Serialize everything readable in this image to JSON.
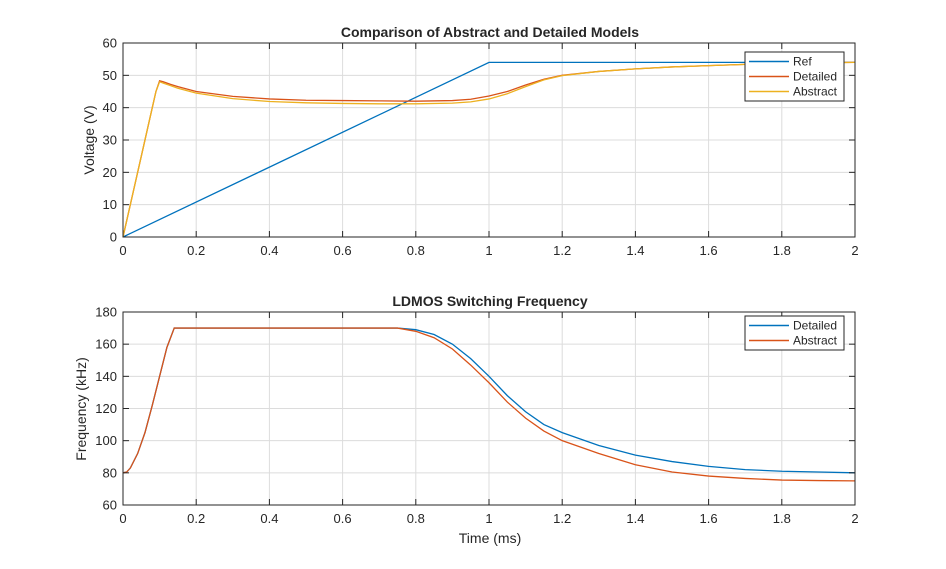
{
  "chart_data": [
    {
      "type": "line",
      "title": "Comparison of Abstract and Detailed Models",
      "xlabel": "",
      "ylabel": "Voltage (V)",
      "xlim": [
        0,
        2
      ],
      "ylim": [
        0,
        60
      ],
      "xticks": [
        0,
        0.2,
        0.4,
        0.6,
        0.8,
        1,
        1.2,
        1.4,
        1.6,
        1.8,
        2
      ],
      "xtick_labels": [
        "0",
        "0.2",
        "0.4",
        "0.6",
        "0.8",
        "1",
        "1.2",
        "1.4",
        "1.6",
        "1.8",
        "2"
      ],
      "yticks": [
        0,
        10,
        20,
        30,
        40,
        50,
        60
      ],
      "ytick_labels": [
        "0",
        "10",
        "20",
        "30",
        "40",
        "50",
        "60"
      ],
      "grid": true,
      "legend_position": "top-right",
      "series": [
        {
          "name": "Ref",
          "color": "#0072BD",
          "x": [
            0,
            1,
            2
          ],
          "y": [
            0,
            54,
            54
          ]
        },
        {
          "name": "Detailed",
          "color": "#D95319",
          "x": [
            0,
            0.01,
            0.03,
            0.05,
            0.07,
            0.09,
            0.1,
            0.11,
            0.13,
            0.15,
            0.2,
            0.3,
            0.4,
            0.5,
            0.6,
            0.7,
            0.8,
            0.9,
            0.95,
            1.0,
            1.05,
            1.1,
            1.15,
            1.2,
            1.3,
            1.4,
            1.5,
            1.6,
            1.7,
            1.8,
            1.9,
            2.0
          ],
          "y": [
            0,
            5,
            15,
            25,
            35,
            45,
            48.3,
            48,
            47.2,
            46.5,
            45,
            43.5,
            42.7,
            42.3,
            42.2,
            42.1,
            42,
            42.2,
            42.6,
            43.6,
            45,
            47,
            48.8,
            50,
            51.2,
            52,
            52.6,
            53,
            53.4,
            53.7,
            53.9,
            54
          ]
        },
        {
          "name": "Abstract",
          "color": "#EDB120",
          "x": [
            0,
            0.01,
            0.03,
            0.05,
            0.07,
            0.09,
            0.1,
            0.11,
            0.13,
            0.15,
            0.2,
            0.3,
            0.4,
            0.5,
            0.6,
            0.7,
            0.8,
            0.9,
            0.95,
            1.0,
            1.05,
            1.1,
            1.15,
            1.2,
            1.3,
            1.4,
            1.5,
            1.6,
            1.7,
            1.8,
            1.9,
            2.0
          ],
          "y": [
            0,
            5,
            15,
            25,
            35,
            45,
            48,
            47.6,
            46.8,
            46,
            44.5,
            42.8,
            41.9,
            41.5,
            41.3,
            41.2,
            41.2,
            41.4,
            41.8,
            42.7,
            44.3,
            46.5,
            48.6,
            49.9,
            51.2,
            52,
            52.6,
            53,
            53.4,
            53.7,
            53.9,
            54
          ]
        }
      ]
    },
    {
      "type": "line",
      "title": "LDMOS Switching Frequency",
      "xlabel": "Time (ms)",
      "ylabel": "Frequency (kHz)",
      "xlim": [
        0,
        2
      ],
      "ylim": [
        60,
        180
      ],
      "xticks": [
        0,
        0.2,
        0.4,
        0.6,
        0.8,
        1,
        1.2,
        1.4,
        1.6,
        1.8,
        2
      ],
      "xtick_labels": [
        "0",
        "0.2",
        "0.4",
        "0.6",
        "0.8",
        "1",
        "1.2",
        "1.4",
        "1.6",
        "1.8",
        "2"
      ],
      "yticks": [
        60,
        80,
        100,
        120,
        140,
        160,
        180
      ],
      "ytick_labels": [
        "60",
        "80",
        "100",
        "120",
        "140",
        "160",
        "180"
      ],
      "grid": true,
      "legend_position": "top-right",
      "series": [
        {
          "name": "Detailed",
          "color": "#0072BD",
          "x": [
            0,
            0.01,
            0.02,
            0.04,
            0.06,
            0.08,
            0.1,
            0.12,
            0.14,
            0.2,
            0.4,
            0.6,
            0.75,
            0.8,
            0.85,
            0.9,
            0.95,
            1.0,
            1.05,
            1.1,
            1.15,
            1.2,
            1.3,
            1.4,
            1.5,
            1.6,
            1.7,
            1.8,
            1.9,
            2.0
          ],
          "y": [
            80,
            80.5,
            83,
            92,
            105,
            122,
            140,
            158,
            170,
            170,
            170,
            170,
            170,
            169,
            166,
            160,
            151,
            140,
            128,
            118,
            110,
            105,
            97,
            91,
            87,
            84,
            82,
            81,
            80.5,
            80
          ]
        },
        {
          "name": "Abstract",
          "color": "#D95319",
          "x": [
            0,
            0.01,
            0.02,
            0.04,
            0.06,
            0.08,
            0.1,
            0.12,
            0.14,
            0.2,
            0.4,
            0.6,
            0.75,
            0.8,
            0.85,
            0.9,
            0.95,
            1.0,
            1.05,
            1.1,
            1.15,
            1.2,
            1.3,
            1.4,
            1.5,
            1.6,
            1.7,
            1.8,
            1.9,
            2.0
          ],
          "y": [
            80,
            80.5,
            83,
            92,
            105,
            122,
            140,
            158,
            170,
            170,
            170,
            170,
            170,
            168,
            164,
            157,
            147,
            136,
            124,
            114,
            106,
            100,
            92,
            85,
            80.5,
            78,
            76.5,
            75.5,
            75.2,
            75
          ]
        }
      ]
    }
  ]
}
